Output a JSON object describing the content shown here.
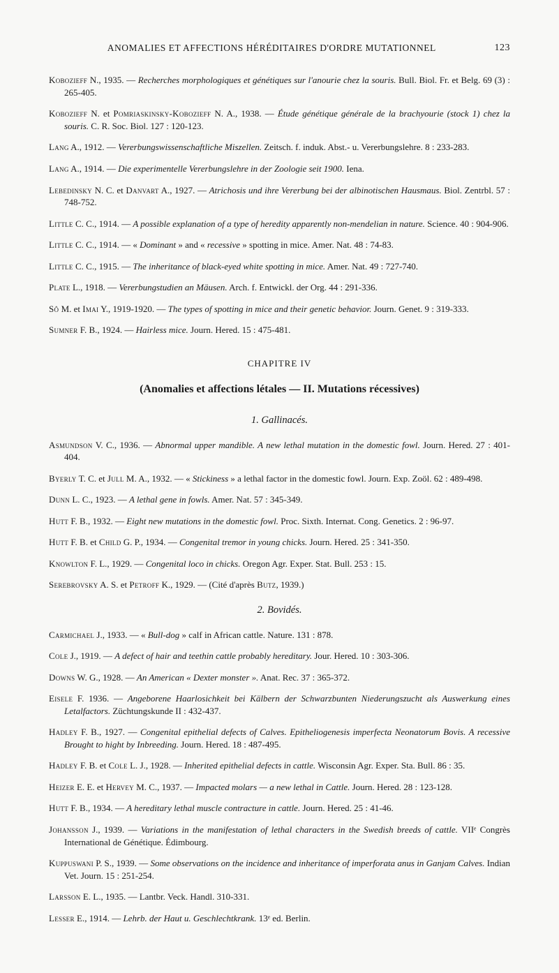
{
  "header": {
    "title": "ANOMALIES ET AFFECTIONS HÉRÉDITAIRES D'ORDRE MUTATIONNEL",
    "page": "123"
  },
  "refs_top": [
    {
      "a": "Kobozieff",
      "rest": " N., 1935. — ",
      "it": "Recherches morphologiques et génétiques sur l'anourie chez la souris.",
      "tail": " Bull. Biol. Fr. et Belg. 69 (3) : 265-405."
    },
    {
      "a": "Kobozieff",
      "rest": " N. et ",
      "a2": "Pomriaskinsky-Kobozieff",
      "rest2": " N. A., 1938. — ",
      "it": "Étude génétique générale de la brachyourie (stock 1) chez la souris.",
      "tail": " C. R. Soc. Biol. 127 : 120-123."
    },
    {
      "a": "Lang",
      "rest": " A., 1912. — ",
      "it": "Vererbungswissenschaftliche Miszellen.",
      "tail": " Zeitsch. f. induk. Abst.- u. Vererbungslehre. 8 : 233-283."
    },
    {
      "a": "Lang",
      "rest": " A., 1914. — ",
      "it": "Die experimentelle Vererbungslehre in der Zoologie seit 1900.",
      "tail": " Iena."
    },
    {
      "a": "Lebedinsky",
      "rest": " N. C. et ",
      "a2": "Danvart",
      "rest2": " A., 1927. — ",
      "it": "Atrichosis und ihre Vererbung bei der albinotischen Hausmaus.",
      "tail": " Biol. Zentrbl. 57 : 748-752."
    },
    {
      "a": "Little",
      "rest": " C. C., 1914. — ",
      "it": "A possible explanation of a type of heredity apparently non-mendelian in nature.",
      "tail": " Science. 40 : 904-906."
    },
    {
      "a": "Little",
      "rest": " C. C., 1914. — « ",
      "it": "Dominant",
      "mid": " » and « ",
      "it2": "recessive",
      "tail": " » spotting in mice. Amer. Nat. 48 : 74-83."
    },
    {
      "a": "Little",
      "rest": " C. C., 1915. — ",
      "it": "The inheritance of black-eyed white spotting in mice.",
      "tail": " Amer. Nat. 49 : 727-740."
    },
    {
      "a": "Plate",
      "rest": " L., 1918. — ",
      "it": "Vererbungstudien an Mäusen.",
      "tail": " Arch. f. Entwickl. der Org. 44 : 291-336."
    },
    {
      "a": "Sô",
      "rest": " M. et ",
      "a2": "Imai",
      "rest2": " Y., 1919-1920. — ",
      "it": "The types of spotting in mice and their genetic behavior.",
      "tail": " Journ. Genet. 9 : 319-333."
    },
    {
      "a": "Sumner",
      "rest": " F. B., 1924. — ",
      "it": "Hairless mice.",
      "tail": " Journ. Hered. 15 : 475-481."
    }
  ],
  "chapter": {
    "label": "CHAPITRE IV",
    "title": "(Anomalies et affections létales — II. Mutations récessives)"
  },
  "sub1": "1. Gallinacés.",
  "refs_gall": [
    {
      "a": "Asmundson",
      "rest": " V. C., 1936. — ",
      "it": "Abnormal upper mandible. A new lethal mutation in the domestic fowl.",
      "tail": " Journ. Hered. 27 : 401-404."
    },
    {
      "a": "Byerly",
      "rest": " T. C. et ",
      "a2": "Jull",
      "rest2": " M. A., 1932. — « ",
      "it": "Stickiness",
      "tail": " » a lethal factor in the domestic fowl. Journ. Exp. Zoöl. 62 : 489-498."
    },
    {
      "a": "Dunn",
      "rest": " L. C., 1923. — ",
      "it": "A lethal gene in fowls.",
      "tail": " Amer. Nat. 57 : 345-349."
    },
    {
      "a": "Hutt",
      "rest": " F. B., 1932. — ",
      "it": "Eight new mutations in the domestic fowl.",
      "tail": " Proc. Sixth. Internat. Cong. Genetics. 2 : 96-97."
    },
    {
      "a": "Hutt",
      "rest": " F. B. et ",
      "a2": "Child",
      "rest2": " G. P., 1934. — ",
      "it": "Congenital tremor in young chicks.",
      "tail": " Journ. Hered. 25 : 341-350."
    },
    {
      "a": "Knowlton",
      "rest": " F. L., 1929. — ",
      "it": "Congenital loco in chicks.",
      "tail": " Oregon Agr. Exper. Stat. Bull. 253 : 15."
    },
    {
      "a": "Serebrovsky",
      "rest": " A. S. et ",
      "a2": "Petroff",
      "rest2": " K., 1929. — (Cité d'après ",
      "a3": "Butz",
      "tail": ", 1939.)"
    }
  ],
  "sub2": "2. Bovidés.",
  "refs_bov": [
    {
      "a": "Carmichael",
      "rest": " J., 1933. — « ",
      "it": "Bull-dog",
      "tail": " » calf in African cattle. Nature. 131 : 878."
    },
    {
      "a": "Cole",
      "rest": " J., 1919. — ",
      "it": "A defect of hair and teethin cattle probably hereditary.",
      "tail": " Jour. Hered. 10 : 303-306."
    },
    {
      "a": "Downs",
      "rest": " W. G., 1928. — ",
      "it": "An American « Dexter monster ».",
      "tail": " Anat. Rec. 37 : 365-372."
    },
    {
      "a": "Eisele",
      "rest": " F. 1936. — ",
      "it": "Angeborene Haarlosichkeit bei Kälbern der Schwarzbunten Niederungszucht als Auswerkung eines Letalfactors.",
      "tail": " Züchtungskunde II : 432-437."
    },
    {
      "a": "Hadley",
      "rest": " F. B., 1927. — ",
      "it": "Congenital epithelial defects of Calves. Epitheliogenesis imperfecta Neonatorum Bovis. A recessive Brought to hight by Inbreeding.",
      "tail": " Journ. Hered. 18 : 487-495."
    },
    {
      "a": "Hadley",
      "rest": " F. B. et ",
      "a2": "Cole",
      "rest2": " L. J., 1928. — ",
      "it": "Inherited epithelial defects in cattle.",
      "tail": " Wisconsin Agr. Exper. Sta. Bull. 86 : 35."
    },
    {
      "a": "Heizer",
      "rest": " E. E. et ",
      "a2": "Hervey",
      "rest2": " M. C., 1937. — ",
      "it": "Impacted molars — a new lethal in Cattle.",
      "tail": " Journ. Hered. 28 : 123-128."
    },
    {
      "a": "Hutt",
      "rest": " F. B., 1934. — ",
      "it": "A hereditary lethal muscle contracture in cattle.",
      "tail": " Journ. Hered. 25 : 41-46."
    },
    {
      "a": "Johansson",
      "rest": " J., 1939. — ",
      "it": "Variations in the manifestation of lethal characters in the Swedish breeds of cattle.",
      "tail": " VIIᵉ Congrès International de Génétique. Édimbourg."
    },
    {
      "a": "Kuppuswani",
      "rest": " P. S., 1939. — ",
      "it": "Some observations on the incidence and inheritance of imperforata anus in Ganjam Calves.",
      "tail": " Indian Vet. Journ. 15 : 251-254."
    },
    {
      "a": "Larsson",
      "rest": " E. L., 1935. — Lantbr. Veck. Handl. 310-331.",
      "it": "",
      "tail": ""
    },
    {
      "a": "Lesser",
      "rest": " E., 1914. — ",
      "it": "Lehrb. der Haut u. Geschlechtkrank.",
      "tail": " 13ᵉ ed. Berlin."
    }
  ]
}
